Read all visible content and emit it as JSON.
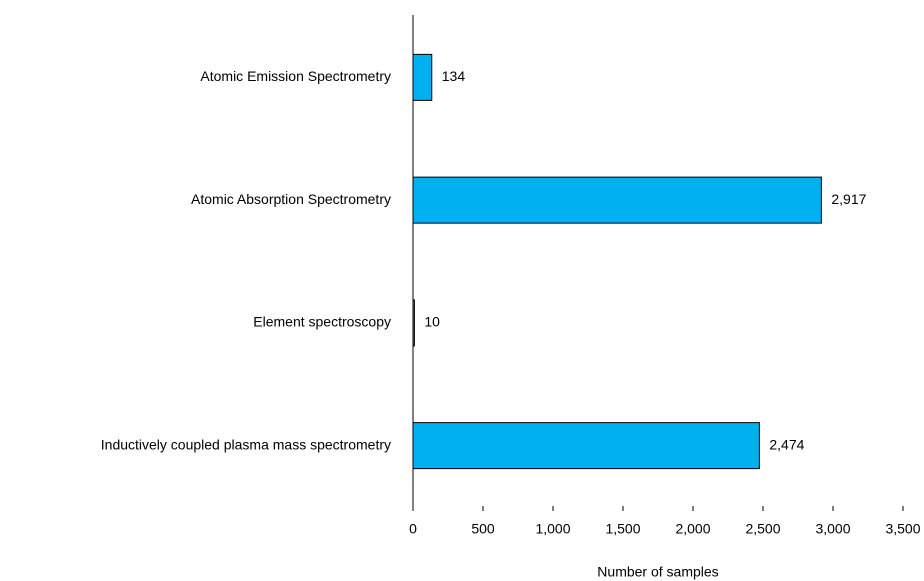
{
  "chart_data": {
    "type": "bar",
    "orientation": "horizontal",
    "x_label": "Number of samples",
    "categories": [
      "Atomic Emission Spectrometry",
      "Atomic Absorption Spectrometry",
      "Element spectroscopy",
      "Inductively coupled plasma mass spectrometry"
    ],
    "values": [
      134,
      2917,
      10,
      2474
    ],
    "value_labels": [
      "134",
      "2,917",
      "10",
      "2,474"
    ],
    "color": "#00b0f0",
    "xlim": [
      0,
      3500
    ],
    "xticks": [
      0,
      500,
      {
        "value": 1000,
        "label": "1,000"
      },
      {
        "value": 1500,
        "label": "1,500"
      },
      {
        "value": 2000,
        "label": "2,000"
      },
      {
        "value": 2500,
        "label": "2,500"
      },
      {
        "value": 3000,
        "label": "3,000"
      },
      {
        "value": 3500,
        "label": "3,500"
      }
    ],
    "grid": false
  }
}
